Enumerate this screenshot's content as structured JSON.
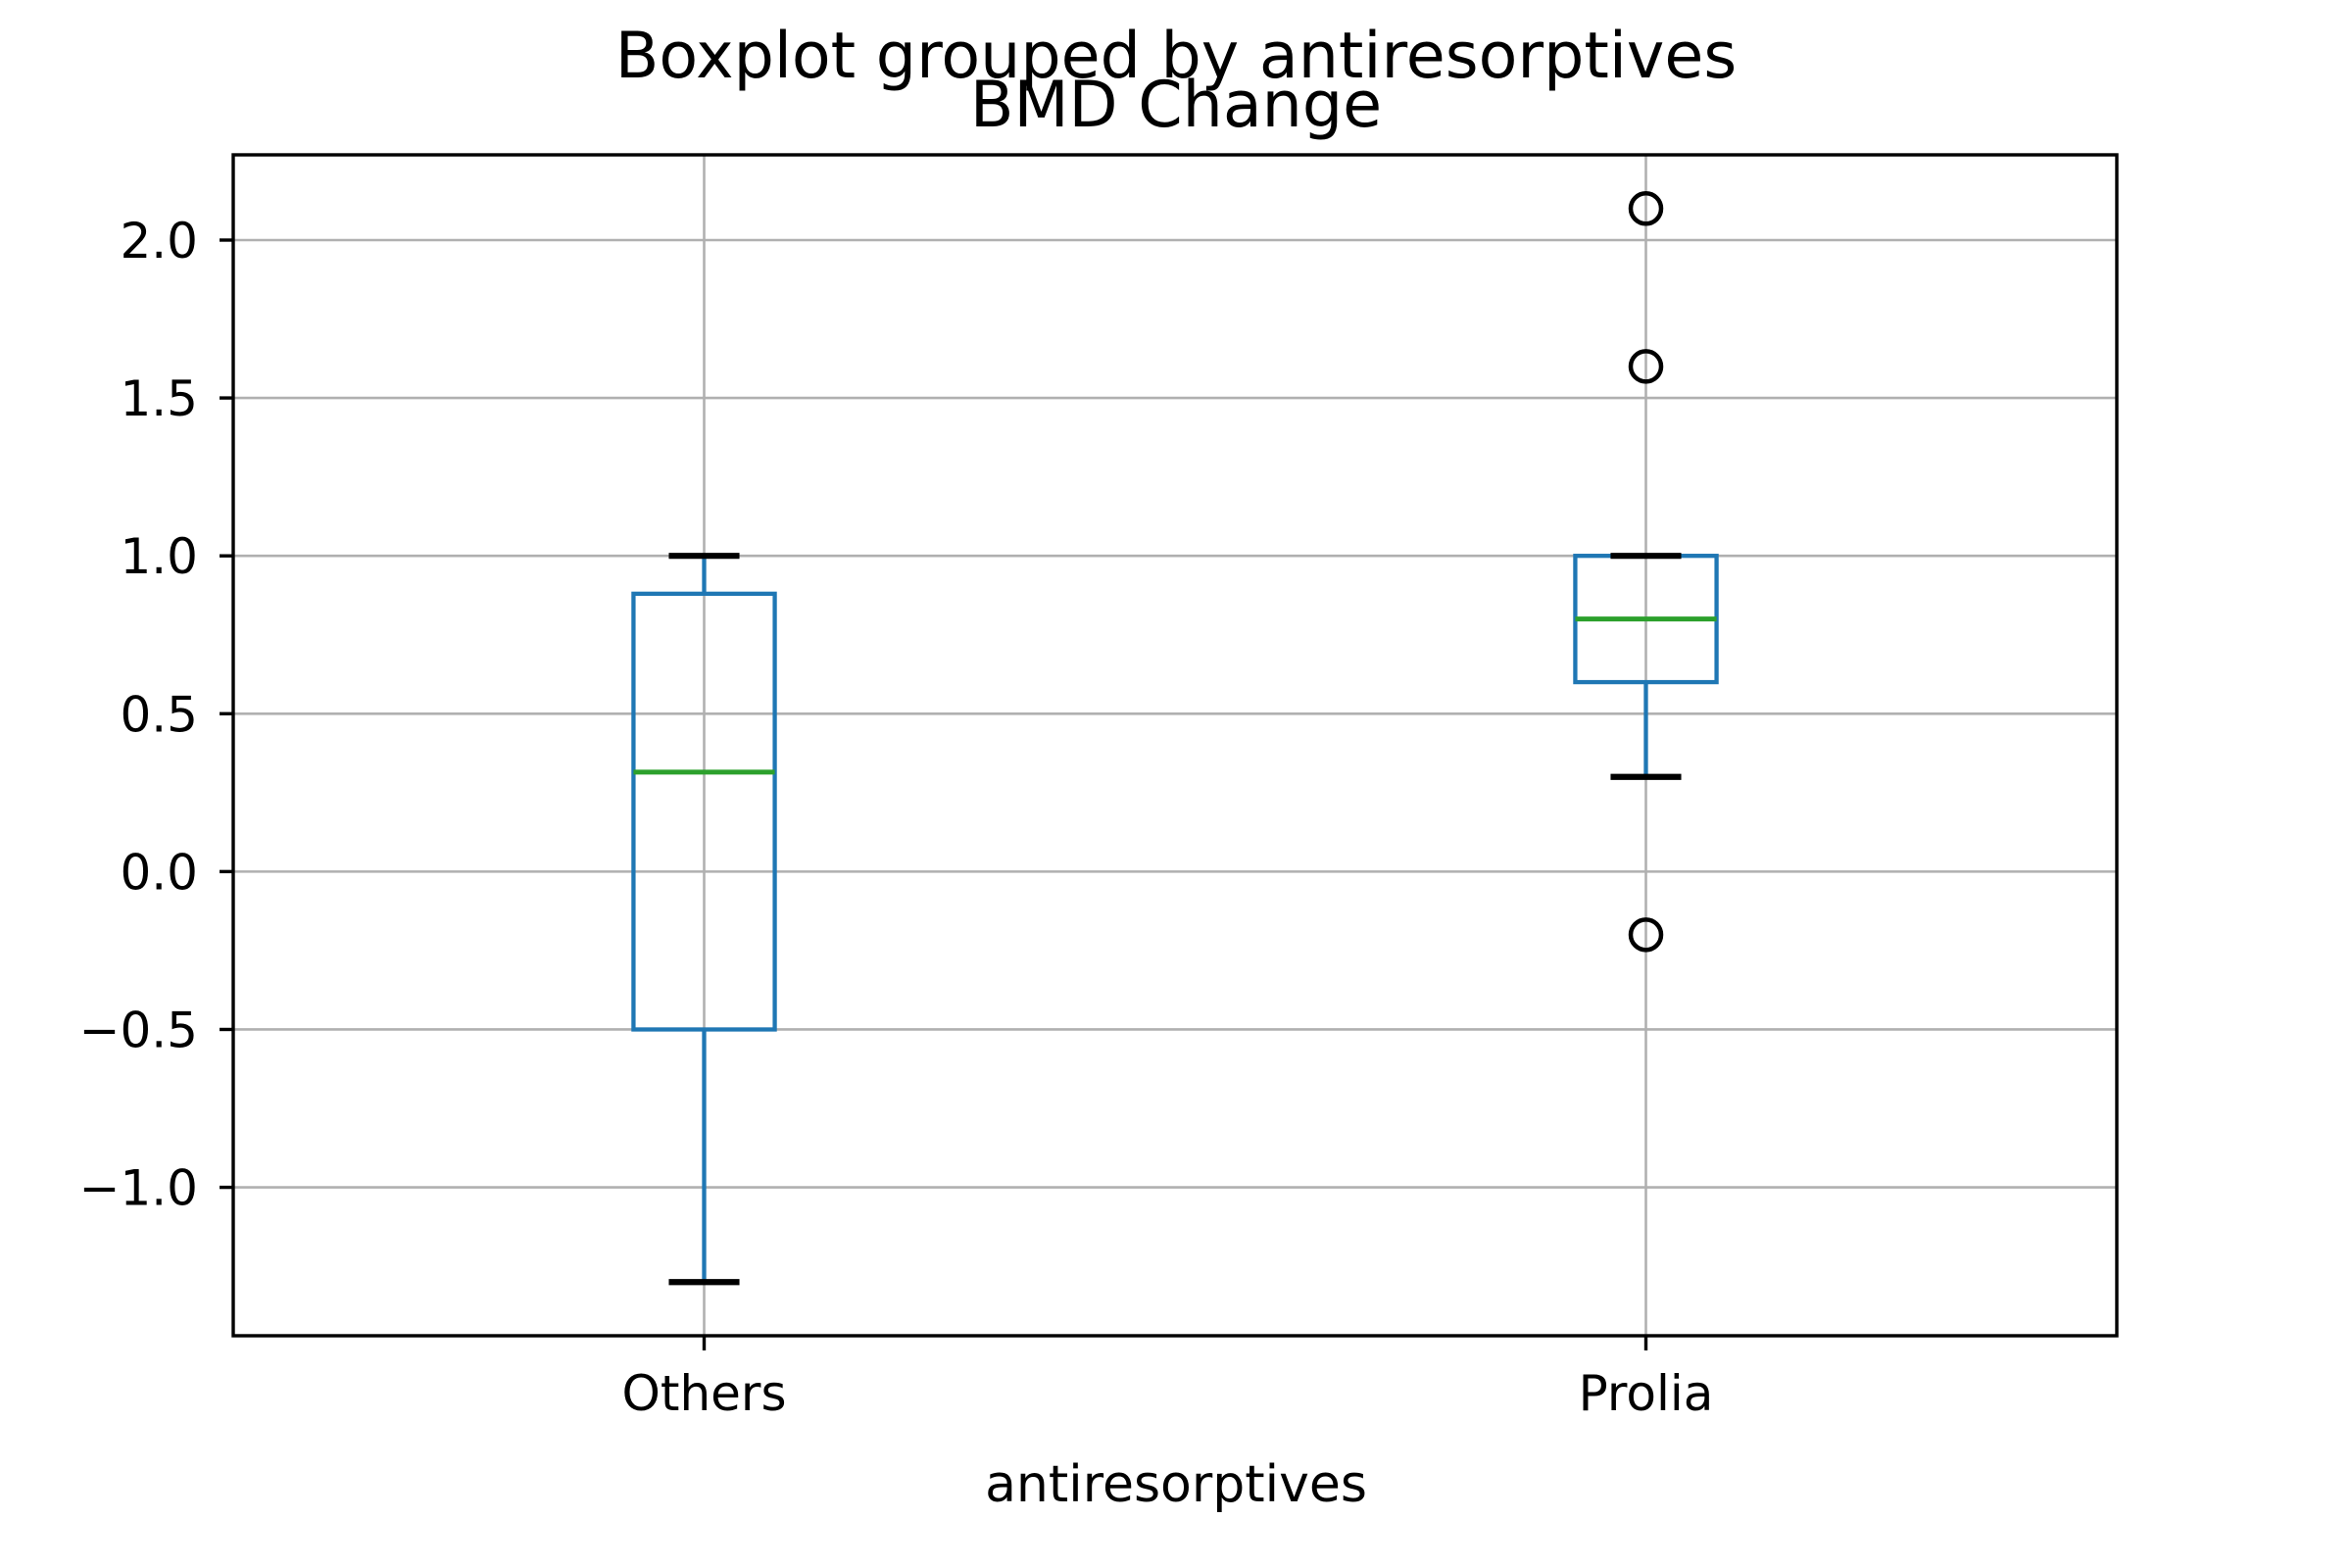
{
  "chart_data": {
    "type": "boxplot",
    "suptitle": "Boxplot grouped by antiresorptives",
    "title": "BMD Change",
    "xlabel": "antiresorptives",
    "ylabel": "",
    "categories": [
      "Others",
      "Prolia"
    ],
    "positions": [
      1,
      2
    ],
    "xlim": [
      0.5,
      2.5
    ],
    "ylim": [
      -1.47,
      2.27
    ],
    "yticks": [
      2.0,
      1.5,
      1.0,
      0.5,
      0.0,
      -0.5,
      -1.0
    ],
    "ytick_labels": [
      "2.0",
      "1.5",
      "1.0",
      "0.5",
      "0.0",
      "−0.5",
      "−1.0"
    ],
    "grid": true,
    "legend": "none",
    "series": [
      {
        "name": "Others",
        "whisker_low": -1.3,
        "q1": -0.5,
        "median": 0.315,
        "q3": 0.88,
        "whisker_high": 1.0,
        "outliers": []
      },
      {
        "name": "Prolia",
        "whisker_low": 0.3,
        "q1": 0.6,
        "median": 0.8,
        "q3": 1.0,
        "whisker_high": 1.0,
        "outliers": [
          2.1,
          1.6,
          -0.2
        ]
      }
    ],
    "box_width_units": 0.15,
    "cap_width_units": 0.075,
    "colors": {
      "box": "#1f77b4",
      "whisker": "#1f77b4",
      "median": "#2ca02c",
      "cap": "#000000",
      "flier_edge": "#000000",
      "grid": "#b0b0b0",
      "spine": "#000000",
      "tick_label": "#000000",
      "background": "#ffffff"
    }
  }
}
